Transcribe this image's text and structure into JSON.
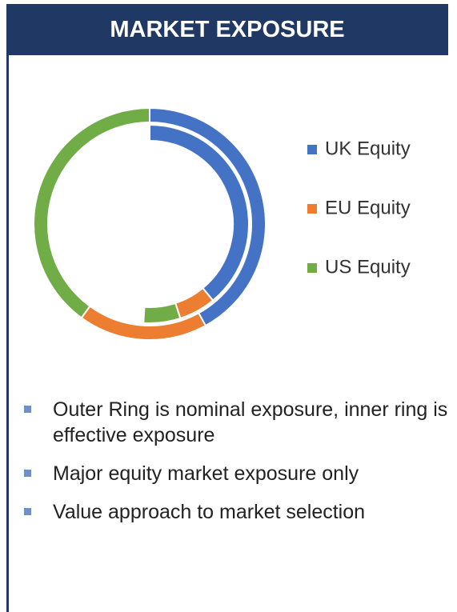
{
  "header": {
    "title": "MARKET EXPOSURE"
  },
  "chart_data": {
    "type": "donut",
    "categories": [
      "UK Equity",
      "EU Equity",
      "US Equity"
    ],
    "colors": [
      "#4472c4",
      "#ed7d31",
      "#70ad47"
    ],
    "rings": [
      {
        "values": [
          42,
          18,
          40
        ]
      },
      {
        "values": [
          39,
          6,
          6
        ]
      }
    ]
  },
  "bullets": [
    "Outer Ring is nominal exposure, inner ring is effective exposure",
    "Major equity market exposure only",
    "Value approach to market selection"
  ]
}
